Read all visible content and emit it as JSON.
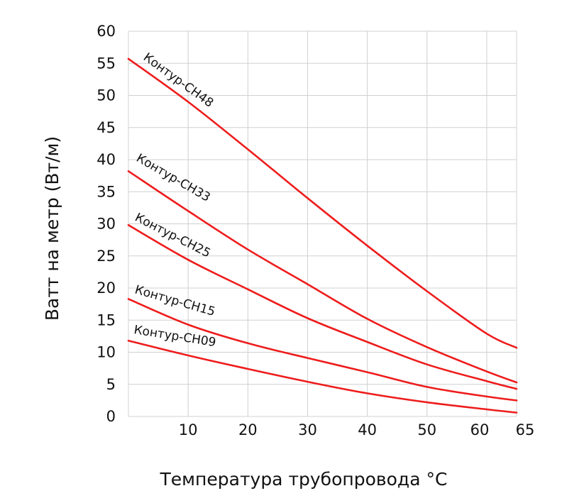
{
  "chart_data": {
    "type": "line",
    "xlabel": "Температура трубопровода °С",
    "ylabel": "Ватт на метр (Вт/м)",
    "xlim": [
      0,
      65
    ],
    "ylim": [
      0,
      60
    ],
    "x_ticks": [
      10,
      20,
      30,
      40,
      50,
      60,
      65
    ],
    "y_ticks": [
      0,
      5,
      10,
      15,
      20,
      25,
      30,
      35,
      40,
      45,
      50,
      55,
      60
    ],
    "grid": true,
    "line_color": "#ee1c1c",
    "series": [
      {
        "name": "Контур-CH48",
        "x": [
          0,
          10,
          20,
          30,
          40,
          50,
          60,
          65
        ],
        "y": [
          55.7,
          49.0,
          41.6,
          34.0,
          26.6,
          19.5,
          12.9,
          10.7
        ]
      },
      {
        "name": "Контур-CH33",
        "x": [
          0,
          10,
          20,
          30,
          40,
          50,
          60,
          65
        ],
        "y": [
          38.2,
          32.0,
          26.0,
          20.6,
          15.2,
          10.8,
          7.0,
          5.3
        ]
      },
      {
        "name": "Контур-CH25",
        "x": [
          0,
          10,
          20,
          30,
          40,
          50,
          60,
          65
        ],
        "y": [
          29.8,
          24.4,
          19.8,
          15.3,
          11.6,
          8.1,
          5.5,
          4.3
        ]
      },
      {
        "name": "Контур-CH15",
        "x": [
          0,
          10,
          20,
          30,
          40,
          50,
          60,
          65
        ],
        "y": [
          18.3,
          14.3,
          11.4,
          9.1,
          6.9,
          4.6,
          3.1,
          2.5
        ]
      },
      {
        "name": "Контур-CH09",
        "x": [
          0,
          10,
          20,
          30,
          40,
          50,
          60,
          65
        ],
        "y": [
          11.8,
          9.5,
          7.4,
          5.4,
          3.6,
          2.2,
          1.1,
          0.6
        ]
      }
    ]
  }
}
